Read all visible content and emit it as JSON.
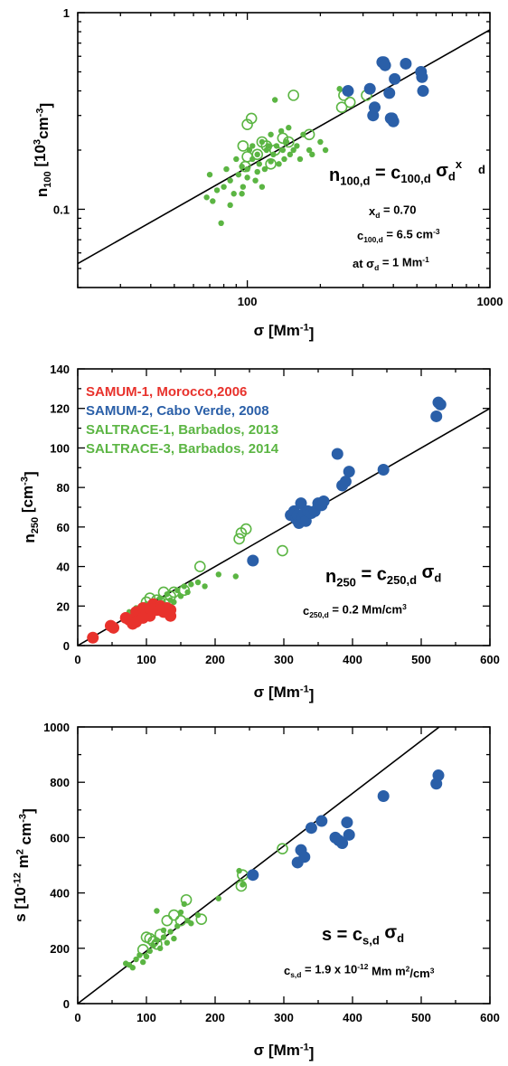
{
  "colors": {
    "samum1": "#e8322c",
    "samum2": "#2a5fa8",
    "saltrace": "#5bb543",
    "line": "#000000"
  },
  "chart_data": [
    {
      "type": "scatter",
      "xscale": "log",
      "yscale": "log",
      "xlim": [
        20,
        1000
      ],
      "ylim": [
        0.04,
        1
      ],
      "xticks": [
        "100",
        "1000"
      ],
      "yticks": [
        "0.1",
        "1"
      ],
      "xlabel": {
        "main": "σ [Mm",
        "sup": "-1",
        "end": "]"
      },
      "ylabel": {
        "pre": "n",
        "sub": "100",
        "mid": " [10",
        "sup1": "3",
        "mid2": "cm",
        "sup2": "-3",
        "end": "]"
      },
      "equation": {
        "lhs": "n",
        "lhs_sub": "100,d",
        "eq": " = c",
        "c_sub": "100,d",
        "sigma": " σ",
        "s_sub": "d",
        "exp": "x",
        "exp_sub": "d"
      },
      "notes": [
        {
          "a": "x",
          "a_sub": "d",
          "b": " = 0.70"
        },
        {
          "a": "c",
          "a_sub": "100,d",
          "b": " = 6.5 cm",
          "b_sup": "-3"
        },
        {
          "a": "at σ",
          "a_sub": "d",
          "b": " = 1 Mm",
          "b_sup": "-1"
        }
      ],
      "fit": {
        "c": 6.5,
        "x": 0.7
      },
      "series": [
        {
          "key": "saltrace",
          "style": "filled_small",
          "points": [
            [
              68,
              0.115
            ],
            [
              72,
              0.11
            ],
            [
              70,
              0.15
            ],
            [
              75,
              0.125
            ],
            [
              78,
              0.085
            ],
            [
              80,
              0.13
            ],
            [
              82,
              0.16
            ],
            [
              85,
              0.14
            ],
            [
              88,
              0.12
            ],
            [
              90,
              0.18
            ],
            [
              92,
              0.15
            ],
            [
              95,
              0.165
            ],
            [
              96,
              0.13
            ],
            [
              100,
              0.16
            ],
            [
              102,
              0.2
            ],
            [
              105,
              0.18
            ],
            [
              108,
              0.14
            ],
            [
              110,
              0.19
            ],
            [
              112,
              0.17
            ],
            [
              115,
              0.22
            ],
            [
              118,
              0.16
            ],
            [
              120,
              0.2
            ],
            [
              122,
              0.21
            ],
            [
              125,
              0.24
            ],
            [
              128,
              0.19
            ],
            [
              130,
              0.36
            ],
            [
              132,
              0.21
            ],
            [
              135,
              0.17
            ],
            [
              138,
              0.25
            ],
            [
              140,
              0.2
            ],
            [
              142,
              0.18
            ],
            [
              145,
              0.22
            ],
            [
              148,
              0.26
            ],
            [
              150,
              0.19
            ],
            [
              155,
              0.2
            ],
            [
              160,
              0.21
            ],
            [
              165,
              0.18
            ],
            [
              170,
              0.24
            ],
            [
              180,
              0.2
            ],
            [
              185,
              0.19
            ],
            [
              200,
              0.22
            ],
            [
              210,
              0.2
            ],
            [
              240,
              0.41
            ],
            [
              95,
              0.12
            ],
            [
              100,
              0.145
            ],
            [
              85,
              0.105
            ],
            [
              110,
              0.155
            ],
            [
              125,
              0.175
            ],
            [
              105,
              0.21
            ],
            [
              115,
              0.13
            ]
          ]
        },
        {
          "key": "saltrace",
          "style": "open",
          "points": [
            [
              96,
              0.21
            ],
            [
              100,
              0.27
            ],
            [
              104,
              0.29
            ],
            [
              110,
              0.19
            ],
            [
              115,
              0.22
            ],
            [
              120,
              0.21
            ],
            [
              125,
              0.17
            ],
            [
              130,
              0.2
            ],
            [
              140,
              0.23
            ],
            [
              148,
              0.22
            ],
            [
              155,
              0.38
            ],
            [
              180,
              0.24
            ],
            [
              245,
              0.33
            ],
            [
              250,
              0.38
            ],
            [
              265,
              0.35
            ],
            [
              310,
              0.38
            ],
            [
              100,
              0.185
            ],
            [
              98,
              0.165
            ]
          ]
        },
        {
          "key": "samum2",
          "style": "filled_large",
          "points": [
            [
              260,
              0.4
            ],
            [
              320,
              0.41
            ],
            [
              330,
              0.3
            ],
            [
              335,
              0.33
            ],
            [
              360,
              0.56
            ],
            [
              365,
              0.56
            ],
            [
              370,
              0.54
            ],
            [
              385,
              0.39
            ],
            [
              390,
              0.29
            ],
            [
              395,
              0.29
            ],
            [
              400,
              0.28
            ],
            [
              405,
              0.46
            ],
            [
              450,
              0.55
            ],
            [
              520,
              0.5
            ],
            [
              525,
              0.47
            ],
            [
              530,
              0.4
            ]
          ]
        }
      ]
    },
    {
      "type": "scatter",
      "xlim": [
        0,
        600
      ],
      "ylim": [
        0,
        140
      ],
      "xticks": [
        "0",
        "100",
        "200",
        "300",
        "400",
        "500",
        "600"
      ],
      "yticks": [
        "0",
        "20",
        "40",
        "60",
        "80",
        "100",
        "120",
        "140"
      ],
      "xlabel": {
        "main": "σ [Mm",
        "sup": "-1",
        "end": "]"
      },
      "ylabel": {
        "pre": "n",
        "sub": "250",
        "mid": " [cm",
        "sup1": "-3",
        "end": "]"
      },
      "equation": {
        "lhs": "n",
        "lhs_sub": "250",
        "eq": " = c",
        "c_sub": "250,d",
        "sigma": " σ",
        "s_sub": "d"
      },
      "notes": [
        {
          "a": "c",
          "a_sub": "250,d",
          "b": " = 0.2 Mm/cm",
          "b_sup": "3"
        }
      ],
      "legend": [
        {
          "label": "SAMUM-1, Morocco,2006",
          "key": "samum1"
        },
        {
          "label": "SAMUM-2, Cabo Verde, 2008",
          "key": "samum2"
        },
        {
          "label": "SALTRACE-1, Barbados, 2013",
          "key": "saltrace"
        },
        {
          "label": "SALTRACE-3, Barbados, 2014",
          "key": "saltrace"
        }
      ],
      "fit": {
        "slope": 0.2
      },
      "series": [
        {
          "key": "saltrace",
          "style": "filled_small",
          "points": [
            [
              70,
              13
            ],
            [
              75,
              17
            ],
            [
              80,
              15
            ],
            [
              85,
              19
            ],
            [
              90,
              18
            ],
            [
              95,
              16
            ],
            [
              100,
              21
            ],
            [
              105,
              19
            ],
            [
              110,
              22
            ],
            [
              115,
              18
            ],
            [
              120,
              24
            ],
            [
              125,
              21
            ],
            [
              130,
              26
            ],
            [
              135,
              23
            ],
            [
              140,
              22
            ],
            [
              145,
              28
            ],
            [
              150,
              25
            ],
            [
              155,
              30
            ],
            [
              160,
              27
            ],
            [
              165,
              31
            ],
            [
              175,
              32
            ],
            [
              185,
              30
            ],
            [
              205,
              36
            ],
            [
              230,
              35
            ],
            [
              110,
              20
            ],
            [
              120,
              20
            ]
          ]
        },
        {
          "key": "saltrace",
          "style": "open",
          "points": [
            [
              95,
              19
            ],
            [
              100,
              22
            ],
            [
              105,
              24
            ],
            [
              110,
              20
            ],
            [
              115,
              23
            ],
            [
              120,
              22
            ],
            [
              125,
              27
            ],
            [
              130,
              21
            ],
            [
              135,
              25
            ],
            [
              140,
              27
            ],
            [
              155,
              28
            ],
            [
              178,
              40
            ],
            [
              235,
              54
            ],
            [
              238,
              57
            ],
            [
              245,
              59
            ],
            [
              298,
              48
            ]
          ]
        },
        {
          "key": "samum1",
          "style": "filled_large",
          "points": [
            [
              22,
              4
            ],
            [
              48,
              10
            ],
            [
              52,
              9
            ],
            [
              70,
              14
            ],
            [
              75,
              13
            ],
            [
              80,
              11
            ],
            [
              85,
              17
            ],
            [
              90,
              15
            ],
            [
              95,
              19
            ],
            [
              100,
              16
            ],
            [
              105,
              15
            ],
            [
              110,
              21
            ],
            [
              115,
              18
            ],
            [
              120,
              20
            ],
            [
              125,
              17
            ],
            [
              130,
              19
            ],
            [
              135,
              15
            ],
            [
              135,
              18
            ],
            [
              85,
              12
            ],
            [
              95,
              14
            ],
            [
              105,
              19
            ],
            [
              120,
              18
            ]
          ]
        },
        {
          "key": "samum2",
          "style": "filled_large",
          "points": [
            [
              255,
              43
            ],
            [
              310,
              66
            ],
            [
              315,
              68
            ],
            [
              318,
              64
            ],
            [
              320,
              66
            ],
            [
              322,
              62
            ],
            [
              325,
              72
            ],
            [
              327,
              65
            ],
            [
              330,
              67
            ],
            [
              332,
              63
            ],
            [
              335,
              68
            ],
            [
              340,
              67
            ],
            [
              345,
              68
            ],
            [
              350,
              72
            ],
            [
              355,
              71
            ],
            [
              358,
              73
            ],
            [
              378,
              97
            ],
            [
              385,
              81
            ],
            [
              390,
              83
            ],
            [
              395,
              88
            ],
            [
              445,
              89
            ],
            [
              522,
              116
            ],
            [
              525,
              123
            ],
            [
              528,
              122
            ]
          ]
        }
      ]
    },
    {
      "type": "scatter",
      "xlim": [
        0,
        600
      ],
      "ylim": [
        0,
        1000
      ],
      "xticks": [
        "0",
        "100",
        "200",
        "300",
        "400",
        "500",
        "600"
      ],
      "yticks": [
        "0",
        "200",
        "400",
        "600",
        "800",
        "1000"
      ],
      "xlabel": {
        "main": "σ [Mm",
        "sup": "-1",
        "end": "]"
      },
      "ylabel": {
        "pre": "s [10",
        "sup0": "-12",
        "mid": " m",
        "sup1": "2",
        "mid2": " cm",
        "sup2": "-3",
        "end": "]"
      },
      "equation": {
        "lhs": "s",
        "eq": " = c",
        "c_sub": "s,d",
        "sigma": " σ",
        "s_sub": "d"
      },
      "notes": [
        {
          "a": "c",
          "a_sub": "s,d",
          "b": " = 1.9 x 10",
          "b_sup": "-12",
          "c": " Mm m",
          "c_sup": "2",
          "d": "/cm",
          "d_sup": "3"
        }
      ],
      "fit": {
        "slope": 1.9
      },
      "series": [
        {
          "key": "saltrace",
          "style": "filled_small",
          "points": [
            [
              70,
              145
            ],
            [
              75,
              140
            ],
            [
              80,
              130
            ],
            [
              85,
              160
            ],
            [
              90,
              175
            ],
            [
              95,
              150
            ],
            [
              100,
              170
            ],
            [
              105,
              190
            ],
            [
              110,
              210
            ],
            [
              115,
              230
            ],
            [
              120,
              200
            ],
            [
              125,
              240
            ],
            [
              130,
              220
            ],
            [
              135,
              260
            ],
            [
              140,
              235
            ],
            [
              145,
              280
            ],
            [
              150,
              330
            ],
            [
              155,
              360
            ],
            [
              160,
              300
            ],
            [
              165,
              290
            ],
            [
              175,
              320
            ],
            [
              205,
              380
            ],
            [
              235,
              480
            ],
            [
              240,
              430
            ],
            [
              115,
              335
            ],
            [
              125,
              265
            ]
          ]
        },
        {
          "key": "saltrace",
          "style": "open",
          "points": [
            [
              95,
              195
            ],
            [
              100,
              240
            ],
            [
              105,
              235
            ],
            [
              110,
              225
            ],
            [
              115,
              215
            ],
            [
              120,
              250
            ],
            [
              130,
              300
            ],
            [
              140,
              320
            ],
            [
              150,
              300
            ],
            [
              158,
              375
            ],
            [
              180,
              305
            ],
            [
              238,
              425
            ],
            [
              240,
              465
            ],
            [
              298,
              560
            ]
          ]
        },
        {
          "key": "samum2",
          "style": "filled_large",
          "points": [
            [
              255,
              465
            ],
            [
              320,
              510
            ],
            [
              325,
              555
            ],
            [
              330,
              530
            ],
            [
              340,
              635
            ],
            [
              355,
              660
            ],
            [
              375,
              600
            ],
            [
              380,
              590
            ],
            [
              385,
              580
            ],
            [
              392,
              655
            ],
            [
              395,
              610
            ],
            [
              445,
              750
            ],
            [
              522,
              795
            ],
            [
              525,
              825
            ]
          ]
        }
      ]
    }
  ]
}
